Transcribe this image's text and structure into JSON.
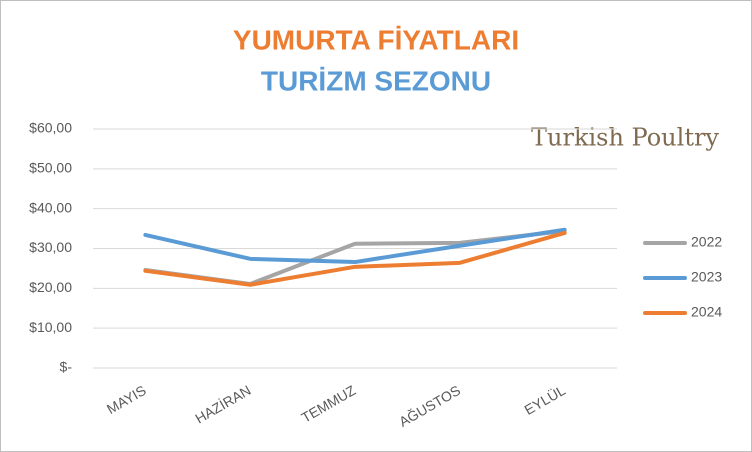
{
  "chart_data": {
    "type": "line",
    "title": "YUMURTA FİYATLARI",
    "subtitle": "TURİZM SEZONU",
    "logo": "Turkish Poultry",
    "categories": [
      "MAYIS",
      "HAZİRAN",
      "TEMMUZ",
      "AĞUSTOS",
      "EYLÜL"
    ],
    "series": [
      {
        "name": "2022",
        "color": "#a5a5a5",
        "values": [
          24.6,
          21.1,
          31.2,
          31.4,
          34.4
        ]
      },
      {
        "name": "2023",
        "color": "#5b9bd5",
        "values": [
          33.4,
          27.4,
          26.6,
          30.7,
          34.7
        ]
      },
      {
        "name": "2024",
        "color": "#ed7d31",
        "values": [
          24.4,
          20.9,
          25.4,
          26.4,
          33.9
        ]
      }
    ],
    "ylim": [
      0,
      60
    ],
    "yticks": [
      {
        "value": 0,
        "label": "$-"
      },
      {
        "value": 10,
        "label": "$10,00"
      },
      {
        "value": 20,
        "label": "$20,00"
      },
      {
        "value": 30,
        "label": "$30,00"
      },
      {
        "value": 40,
        "label": "$40,00"
      },
      {
        "value": 50,
        "label": "$50,00"
      },
      {
        "value": 60,
        "label": "$60,00"
      }
    ],
    "grid": true,
    "legend": "right"
  }
}
